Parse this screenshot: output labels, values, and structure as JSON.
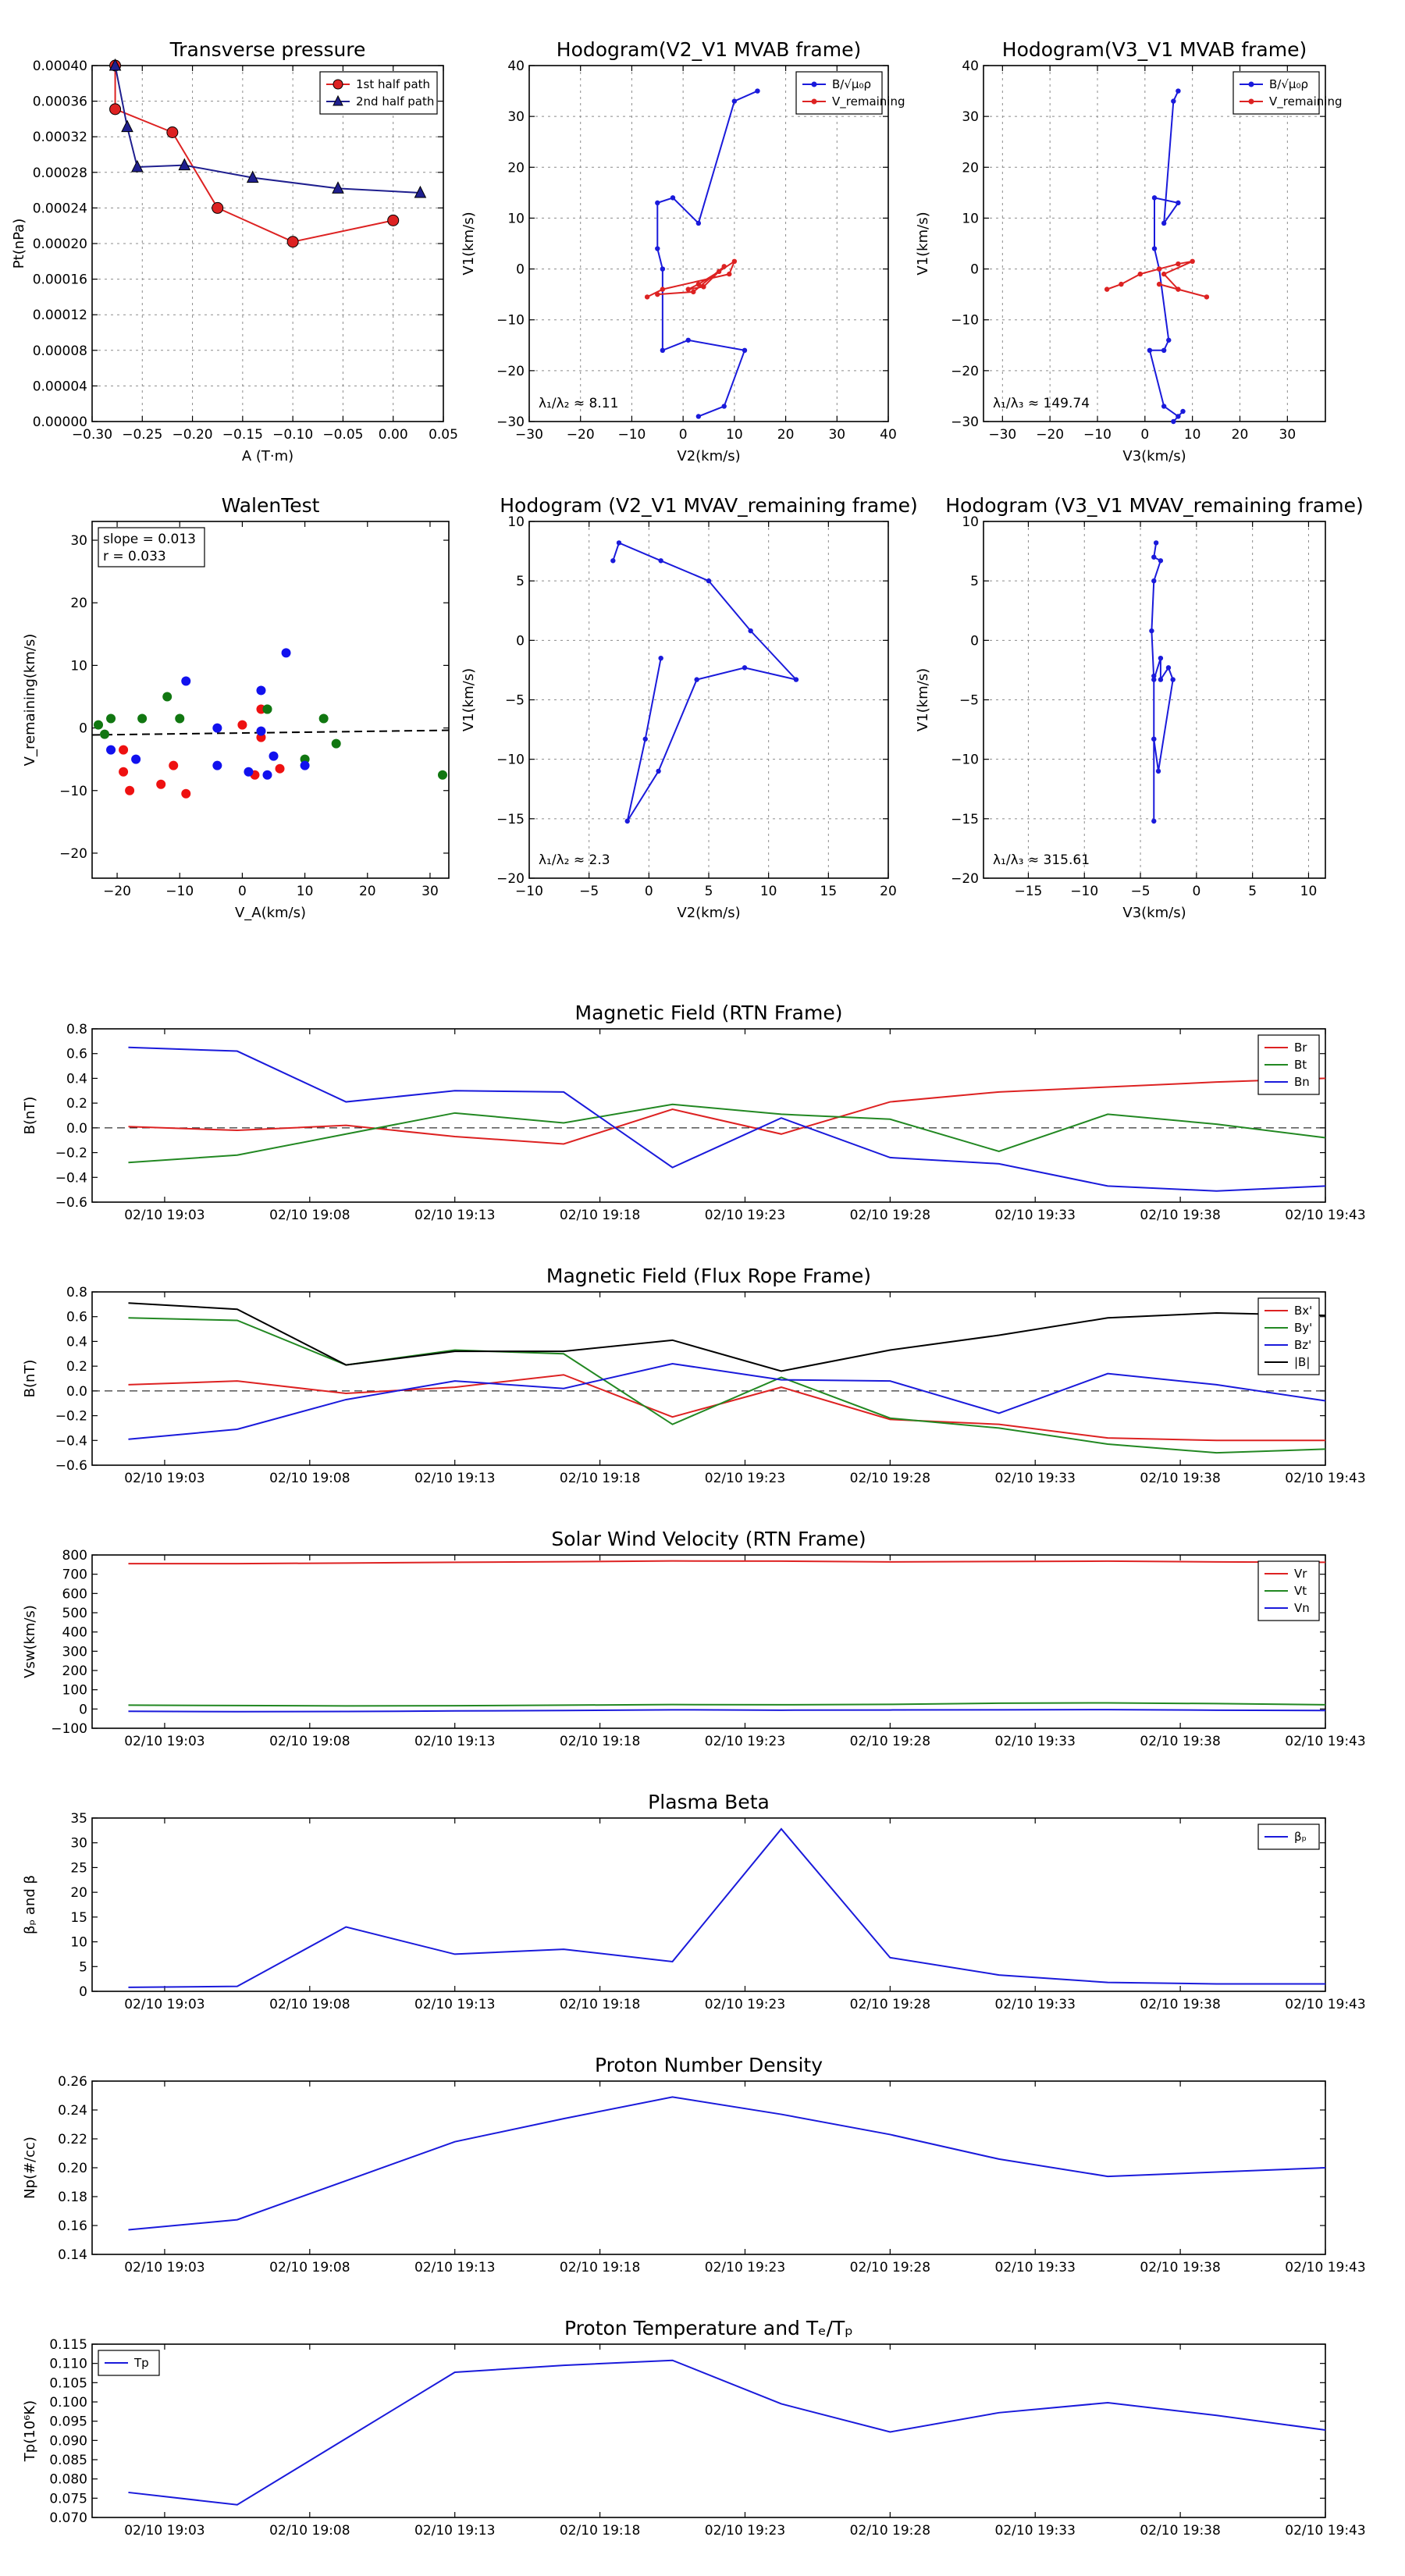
{
  "chart_data": [
    {
      "id": "tp",
      "type": "line",
      "title": "Transverse pressure",
      "xlabel": "A (T·m)",
      "ylabel": "Pt(nPa)",
      "xlim": [
        -0.3,
        0.05
      ],
      "ylim": [
        0,
        0.0004
      ],
      "xticks": [
        -0.3,
        -0.25,
        -0.2,
        -0.15,
        -0.1,
        -0.05,
        0.0,
        0.05
      ],
      "xtick_labels": [
        "−0.30",
        "−0.25",
        "−0.20",
        "−0.15",
        "−0.10",
        "−0.05",
        "0.00",
        "0.05"
      ],
      "yticks": [
        0,
        4e-05,
        8e-05,
        0.00012,
        0.00016,
        0.0002,
        0.00024,
        0.00028,
        0.00032,
        0.00036,
        0.0004
      ],
      "ytick_labels": [
        "0.00000",
        "0.00004",
        "0.00008",
        "0.00012",
        "0.00016",
        "0.00020",
        "0.00024",
        "0.00028",
        "0.00032",
        "0.00036",
        "0.00040"
      ],
      "grid": true,
      "legend_loc": "top-right",
      "series": [
        {
          "name": "1st half path",
          "color": "#dd2222",
          "marker": "circle",
          "x": [
            -0.277,
            -0.277,
            -0.22,
            -0.175,
            -0.1,
            0.0
          ],
          "y": [
            0.0004,
            0.000351,
            0.000325,
            0.00024,
            0.000202,
            0.000226
          ]
        },
        {
          "name": "2nd half path",
          "color": "#1f1f8f",
          "marker": "triangle",
          "x": [
            -0.277,
            -0.265,
            -0.255,
            -0.208,
            -0.14,
            -0.055,
            0.027
          ],
          "y": [
            0.0004,
            0.000331,
            0.000286,
            0.000288,
            0.000274,
            0.000262,
            0.000257
          ]
        }
      ]
    },
    {
      "id": "h1",
      "type": "line",
      "title": "Hodogram(V2_V1 MVAB frame)",
      "xlabel": "V2(km/s)",
      "ylabel": "V1(km/s)",
      "xlim": [
        -30,
        40
      ],
      "ylim": [
        -30,
        40
      ],
      "xticks": [
        -30,
        -20,
        -10,
        0,
        10,
        20,
        30,
        40
      ],
      "xtick_labels": [
        "−30",
        "−20",
        "−10",
        "0",
        "10",
        "20",
        "30",
        "40"
      ],
      "yticks": [
        -30,
        -20,
        -10,
        0,
        10,
        20,
        30,
        40
      ],
      "ytick_labels": [
        "−30",
        "−20",
        "−10",
        "0",
        "10",
        "20",
        "30",
        "40"
      ],
      "grid": true,
      "legend_loc": "top-right",
      "annotation": "λ₁/λ₂ ≈ 8.11",
      "series": [
        {
          "name": "B/√μ₀ρ",
          "color": "#1a1adb",
          "x": [
            14.5,
            10,
            3,
            -2,
            -5,
            -5,
            -4,
            -4,
            1,
            12,
            8,
            3
          ],
          "y": [
            35,
            33,
            9,
            14,
            13,
            4,
            0,
            -16,
            -14,
            -16,
            -27,
            -29
          ]
        },
        {
          "name": "V_remaining",
          "color": "#dd2222",
          "x": [
            -7,
            -4,
            9,
            10,
            7,
            3,
            1,
            4,
            8,
            2,
            -5
          ],
          "y": [
            -5.5,
            -4,
            -1,
            1.5,
            -0.5,
            -3,
            -4,
            -3.5,
            0.5,
            -4.5,
            -5
          ]
        }
      ]
    },
    {
      "id": "h2",
      "type": "line",
      "title": "Hodogram(V3_V1 MVAB frame)",
      "xlabel": "V3(km/s)",
      "ylabel": "V1(km/s)",
      "xlim": [
        -34,
        38
      ],
      "ylim": [
        -30,
        40
      ],
      "xticks": [
        -30,
        -20,
        -10,
        0,
        10,
        20,
        30
      ],
      "xtick_labels": [
        "−30",
        "−20",
        "−10",
        "0",
        "10",
        "20",
        "30"
      ],
      "yticks": [
        -30,
        -20,
        -10,
        0,
        10,
        20,
        30,
        40
      ],
      "ytick_labels": [
        "−30",
        "−20",
        "−10",
        "0",
        "10",
        "20",
        "30",
        "40"
      ],
      "grid": true,
      "legend_loc": "top-right",
      "annotation": "λ₁/λ₃ ≈ 149.74",
      "series": [
        {
          "name": "B/√μ₀ρ",
          "color": "#1a1adb",
          "x": [
            7,
            6,
            4,
            7,
            2,
            2,
            3,
            5,
            4,
            1,
            4,
            7,
            8,
            6
          ],
          "y": [
            35,
            33,
            9,
            13,
            14,
            4,
            0,
            -14,
            -16,
            -16,
            -27,
            -29,
            -28,
            -30
          ]
        },
        {
          "name": "V_remaining",
          "color": "#dd2222",
          "x": [
            -8,
            -5,
            -1,
            3,
            7,
            10,
            4,
            7,
            13,
            3
          ],
          "y": [
            -4,
            -3,
            -1,
            0,
            1,
            1.5,
            -1,
            -4,
            -5.5,
            -3
          ]
        }
      ]
    },
    {
      "id": "walen",
      "type": "scatter",
      "title": "WalenTest",
      "xlabel": "V_A(km/s)",
      "ylabel": "V_remaining(km/s)",
      "xlim": [
        -24,
        33
      ],
      "ylim": [
        -24,
        33
      ],
      "xticks": [
        -20,
        -10,
        0,
        10,
        20,
        30
      ],
      "xtick_labels": [
        "−20",
        "−10",
        "0",
        "10",
        "20",
        "30"
      ],
      "yticks": [
        -20,
        -10,
        0,
        10,
        20,
        30
      ],
      "ytick_labels": [
        "−20",
        "−10",
        "0",
        "10",
        "20",
        "30"
      ],
      "grid": false,
      "legend_loc": "top-left",
      "stats": [
        "slope = 0.013",
        "r = 0.033"
      ],
      "fit": {
        "slope": 0.013,
        "intercept": -0.8
      },
      "series": [
        {
          "name": "red",
          "color": "#ee1111",
          "x": [
            -19,
            -19,
            -18,
            -13,
            -11,
            -9,
            0,
            2,
            3,
            3,
            6
          ],
          "y": [
            -3.5,
            -7,
            -10,
            -9,
            -6,
            -10.5,
            0.5,
            -7.5,
            3,
            -1.5,
            -6.5
          ]
        },
        {
          "name": "green",
          "color": "#117711",
          "x": [
            -23,
            -22,
            -21,
            -16,
            -12,
            -10,
            4,
            4,
            10,
            13,
            15,
            32
          ],
          "y": [
            0.5,
            -1,
            1.5,
            1.5,
            5,
            1.5,
            3,
            3,
            -5,
            1.5,
            -2.5,
            -7.5
          ]
        },
        {
          "name": "blue",
          "color": "#1111ee",
          "x": [
            -21,
            -17,
            -9,
            -4,
            -4,
            1,
            3,
            3,
            4,
            5,
            7,
            10
          ],
          "y": [
            -3.5,
            -5,
            7.5,
            0,
            -6,
            -7,
            6,
            -0.5,
            -7.5,
            -4.5,
            12,
            -6
          ]
        }
      ]
    },
    {
      "id": "h3",
      "type": "line",
      "title": "Hodogram (V2_V1 MVAV_remaining frame)",
      "xlabel": "V2(km/s)",
      "ylabel": "V1(km/s)",
      "xlim": [
        -10,
        20
      ],
      "ylim": [
        -20,
        10
      ],
      "xticks": [
        -10,
        -5,
        0,
        5,
        10,
        15,
        20
      ],
      "xtick_labels": [
        "−10",
        "−5",
        "0",
        "5",
        "10",
        "15",
        "20"
      ],
      "yticks": [
        -20,
        -15,
        -10,
        -5,
        0,
        5,
        10
      ],
      "ytick_labels": [
        "−20",
        "−15",
        "−10",
        "−5",
        "0",
        "5",
        "10"
      ],
      "grid": true,
      "annotation": "λ₁/λ₂ ≈ 2.3",
      "series": [
        {
          "name": "hodogram",
          "color": "#1a1adb",
          "x": [
            -3,
            -2.5,
            1,
            5,
            8.5,
            12.3,
            8,
            4,
            0.8,
            -1.8,
            -0.3,
            1
          ],
          "y": [
            6.7,
            8.2,
            6.7,
            5,
            0.8,
            -3.3,
            -2.3,
            -3.3,
            -11,
            -15.2,
            -8.3,
            -1.5
          ]
        }
      ]
    },
    {
      "id": "h4",
      "type": "line",
      "title": "Hodogram (V3_V1 MVAV_remaining frame)",
      "xlabel": "V3(km/s)",
      "ylabel": "V1(km/s)",
      "xlim": [
        -19,
        11.5
      ],
      "ylim": [
        -20,
        10
      ],
      "xticks": [
        -15,
        -10,
        -5,
        0,
        5,
        10
      ],
      "xtick_labels": [
        "−15",
        "−10",
        "−5",
        "0",
        "5",
        "10"
      ],
      "yticks": [
        -20,
        -15,
        -10,
        -5,
        0,
        5,
        10
      ],
      "ytick_labels": [
        "−20",
        "−15",
        "−10",
        "−5",
        "0",
        "5",
        "10"
      ],
      "grid": true,
      "annotation": "λ₁/λ₃ ≈ 315.61",
      "series": [
        {
          "name": "hodogram",
          "color": "#1a1adb",
          "x": [
            -3.6,
            -3.8,
            -3.2,
            -3.8,
            -4,
            -3.8,
            -3.2,
            -3.2,
            -2.5,
            -2.1,
            -3.4,
            -3.8,
            -3.8,
            -3.8,
            -3.8
          ],
          "y": [
            8.2,
            7,
            6.7,
            5,
            0.8,
            -3.3,
            -1.5,
            -3.3,
            -2.3,
            -3.3,
            -11,
            -8.3,
            -3,
            -15.2,
            -8.3
          ]
        }
      ]
    },
    {
      "id": "mf_rtn",
      "type": "line",
      "title": "Magnetic Field (RTN Frame)",
      "ylabel": "B(nT)",
      "ylim": [
        -0.6,
        0.8
      ],
      "yticks": [
        -0.6,
        -0.4,
        -0.2,
        0.0,
        0.2,
        0.4,
        0.6,
        0.8
      ],
      "ytick_labels": [
        "−0.6",
        "−0.4",
        "−0.2",
        "0.0",
        "0.2",
        "0.4",
        "0.6",
        "0.8"
      ],
      "zero_line": true,
      "legend_loc": "top-right",
      "series": [
        {
          "name": "Br",
          "color": "#dd2222",
          "values": [
            0.01,
            -0.02,
            0.02,
            -0.07,
            -0.13,
            0.15,
            -0.05,
            0.21,
            0.29,
            0.33,
            0.37,
            0.4
          ]
        },
        {
          "name": "Bt",
          "color": "#228822",
          "values": [
            -0.28,
            -0.22,
            -0.05,
            0.12,
            0.04,
            0.19,
            0.11,
            0.07,
            -0.19,
            0.11,
            0.03,
            -0.08
          ]
        },
        {
          "name": "Bn",
          "color": "#1a1adb",
          "values": [
            0.65,
            0.62,
            0.21,
            0.3,
            0.29,
            -0.32,
            0.08,
            -0.24,
            -0.29,
            -0.47,
            -0.51,
            -0.47
          ]
        }
      ]
    },
    {
      "id": "mf_fr",
      "type": "line",
      "title": "Magnetic Field (Flux Rope Frame)",
      "ylabel": "B(nT)",
      "ylim": [
        -0.6,
        0.8
      ],
      "yticks": [
        -0.6,
        -0.4,
        -0.2,
        0.0,
        0.2,
        0.4,
        0.6,
        0.8
      ],
      "ytick_labels": [
        "−0.6",
        "−0.4",
        "−0.2",
        "0.0",
        "0.2",
        "0.4",
        "0.6",
        "0.8"
      ],
      "zero_line": true,
      "legend_loc": "top-right",
      "series": [
        {
          "name": "Bx'",
          "color": "#dd2222",
          "values": [
            0.05,
            0.08,
            -0.02,
            0.03,
            0.13,
            -0.21,
            0.03,
            -0.23,
            -0.27,
            -0.38,
            -0.4,
            -0.4
          ]
        },
        {
          "name": "By'",
          "color": "#228822",
          "values": [
            0.59,
            0.57,
            0.21,
            0.33,
            0.3,
            -0.27,
            0.11,
            -0.22,
            -0.3,
            -0.43,
            -0.5,
            -0.47
          ]
        },
        {
          "name": "Bz'",
          "color": "#1a1adb",
          "values": [
            -0.39,
            -0.31,
            -0.07,
            0.08,
            0.02,
            0.22,
            0.09,
            0.08,
            -0.18,
            0.14,
            0.05,
            -0.08
          ]
        },
        {
          "name": "|B|",
          "color": "#000000",
          "values": [
            0.71,
            0.66,
            0.21,
            0.32,
            0.32,
            0.41,
            0.16,
            0.33,
            0.45,
            0.59,
            0.63,
            0.61
          ]
        }
      ]
    },
    {
      "id": "sw",
      "type": "line",
      "title": "Solar Wind Velocity (RTN Frame)",
      "ylabel": "Vsw(km/s)",
      "ylim": [
        -100,
        800
      ],
      "yticks": [
        -100,
        0,
        100,
        200,
        300,
        400,
        500,
        600,
        700,
        800
      ],
      "ytick_labels": [
        "−100",
        "0",
        "100",
        "200",
        "300",
        "400",
        "500",
        "600",
        "700",
        "800"
      ],
      "legend_loc": "top-right",
      "series": [
        {
          "name": "Vr",
          "color": "#dd2222",
          "values": [
            755,
            755,
            758,
            762,
            765,
            769,
            768,
            764,
            766,
            768,
            764,
            762
          ]
        },
        {
          "name": "Vt",
          "color": "#228822",
          "values": [
            20,
            18,
            16,
            17,
            20,
            23,
            22,
            24,
            30,
            32,
            28,
            22
          ]
        },
        {
          "name": "Vn",
          "color": "#1a1adb",
          "values": [
            -12,
            -14,
            -13,
            -10,
            -8,
            -4,
            -6,
            -5,
            -4,
            -3,
            -6,
            -8
          ]
        }
      ]
    },
    {
      "id": "beta",
      "type": "line",
      "title": "Plasma Beta",
      "ylabel": "βₚ and β",
      "ylim": [
        0,
        35
      ],
      "yticks": [
        0,
        5,
        10,
        15,
        20,
        25,
        30,
        35
      ],
      "ytick_labels": [
        "0",
        "5",
        "10",
        "15",
        "20",
        "25",
        "30",
        "35"
      ],
      "legend_loc": "top-right",
      "series": [
        {
          "name": "βₚ",
          "color": "#1a1adb",
          "values": [
            0.8,
            1.0,
            13,
            7.5,
            8.5,
            6,
            32.8,
            6.8,
            3.3,
            1.8,
            1.5,
            1.5
          ]
        }
      ]
    },
    {
      "id": "np",
      "type": "line",
      "title": "Proton Number Density",
      "ylabel": "Np(#/cc)",
      "ylim": [
        0.14,
        0.26
      ],
      "yticks": [
        0.14,
        0.16,
        0.18,
        0.2,
        0.22,
        0.24,
        0.26
      ],
      "ytick_labels": [
        "0.14",
        "0.16",
        "0.18",
        "0.20",
        "0.22",
        "0.24",
        "0.26"
      ],
      "series": [
        {
          "name": "Np",
          "color": "#1a1adb",
          "values": [
            0.157,
            0.164,
            0.191,
            0.218,
            0.234,
            0.249,
            0.237,
            0.223,
            0.206,
            0.194,
            0.197,
            0.2
          ]
        }
      ]
    },
    {
      "id": "tp_t",
      "type": "line",
      "title": "Proton Temperature and Tₑ/Tₚ",
      "ylabel": "Tp(10⁶K)",
      "ylim": [
        0.07,
        0.115
      ],
      "yticks": [
        0.07,
        0.075,
        0.08,
        0.085,
        0.09,
        0.095,
        0.1,
        0.105,
        0.11,
        0.115
      ],
      "ytick_labels": [
        "0.070",
        "0.075",
        "0.080",
        "0.085",
        "0.090",
        "0.095",
        "0.100",
        "0.105",
        "0.110",
        "0.115"
      ],
      "legend_loc": "top-left",
      "series": [
        {
          "name": "Tp",
          "color": "#1a1adb",
          "values": [
            0.0765,
            0.0733,
            0.0905,
            0.1077,
            0.1095,
            0.1108,
            0.0995,
            0.0922,
            0.0972,
            0.0998,
            0.0965,
            0.0927
          ]
        }
      ]
    }
  ],
  "time_axis": {
    "x_minutes": [
      0,
      7.5,
      15,
      22.5,
      30,
      37.5,
      45,
      52.5,
      60,
      67.5,
      75,
      82.5
    ],
    "xlim": [
      -2.5,
      82.5
    ],
    "ticks": [
      2.5,
      12.5,
      22.5,
      32.5,
      42.5,
      52.5,
      62.5,
      72.5,
      82.5
    ],
    "tick_labels": [
      "02/10 19:03",
      "02/10 19:08",
      "02/10 19:13",
      "02/10 19:18",
      "02/10 19:23",
      "02/10 19:28",
      "02/10 19:33",
      "02/10 19:38",
      "02/10 19:43"
    ]
  }
}
